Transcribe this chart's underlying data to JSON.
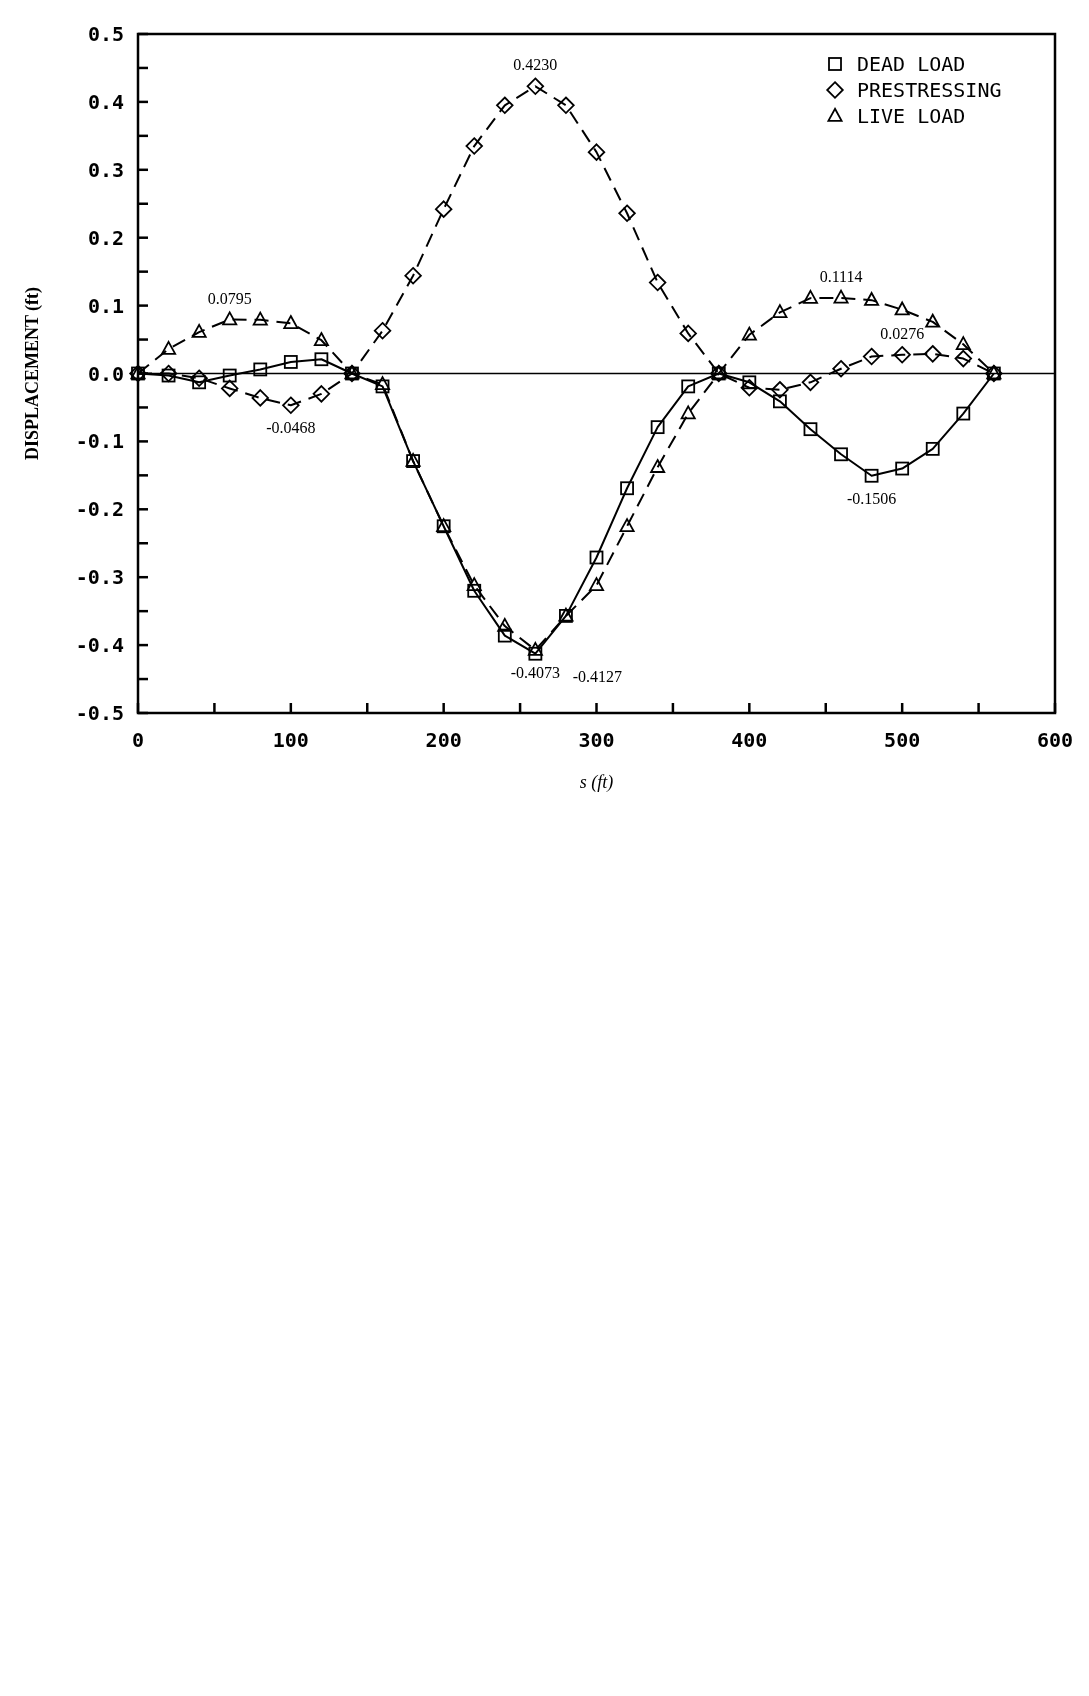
{
  "chart_data": {
    "type": "line",
    "xlabel": "s (ft)",
    "ylabel": "DISPLACEMENT (ft)",
    "x": [
      0,
      20,
      40,
      60,
      80,
      100,
      120,
      140,
      160,
      180,
      200,
      220,
      240,
      260,
      280,
      300,
      320,
      340,
      360,
      380,
      400,
      420,
      440,
      460,
      480,
      500,
      520,
      540,
      560
    ],
    "series": [
      {
        "name": "DEAD LOAD",
        "color": "#000000",
        "marker": "square",
        "line_style": "solid",
        "values": [
          0,
          -0.003,
          -0.013,
          -0.003,
          0.006,
          0.017,
          0.021,
          0,
          -0.019,
          -0.129,
          -0.225,
          -0.32,
          -0.386,
          -0.4127,
          -0.357,
          -0.271,
          -0.169,
          -0.079,
          -0.019,
          0,
          -0.013,
          -0.041,
          -0.082,
          -0.119,
          -0.1506,
          -0.14,
          -0.111,
          -0.059,
          0
        ]
      },
      {
        "name": "PRESTRESSING",
        "color": "#000000",
        "marker": "diamond",
        "line_style": "dashed",
        "values": [
          0,
          0,
          -0.007,
          -0.022,
          -0.036,
          -0.0468,
          -0.03,
          0,
          0.063,
          0.144,
          0.242,
          0.335,
          0.395,
          0.423,
          0.395,
          0.326,
          0.236,
          0.134,
          0.059,
          0,
          -0.021,
          -0.024,
          -0.013,
          0.007,
          0.025,
          0.0276,
          0.029,
          0.022,
          0
        ]
      },
      {
        "name": "LIVE LOAD",
        "color": "#000000",
        "marker": "triangle",
        "line_style": "dashed",
        "values": [
          0,
          0.036,
          0.061,
          0.0795,
          0.079,
          0.074,
          0.049,
          0,
          -0.016,
          -0.129,
          -0.225,
          -0.312,
          -0.372,
          -0.4073,
          -0.357,
          -0.312,
          -0.225,
          -0.138,
          -0.059,
          0,
          0.057,
          0.09,
          0.111,
          0.1114,
          0.108,
          0.094,
          0.076,
          0.043,
          0
        ]
      }
    ],
    "xlim": [
      0,
      600
    ],
    "xticks": [
      0,
      {
        "value": 50,
        "label": null
      },
      100,
      {
        "value": 150,
        "label": null
      },
      200,
      {
        "value": 250,
        "label": null
      },
      300,
      {
        "value": 350,
        "label": null
      },
      400,
      {
        "value": 450,
        "label": null
      },
      500,
      {
        "value": 550,
        "label": null
      },
      600
    ],
    "ylim": [
      -0.5,
      0.5
    ],
    "yticks": [
      -0.5,
      {
        "value": -0.45,
        "label": null
      },
      -0.4,
      {
        "value": -0.35,
        "label": null
      },
      -0.3,
      {
        "value": -0.25,
        "label": null
      },
      -0.2,
      {
        "value": -0.15,
        "label": null
      },
      -0.1,
      {
        "value": -0.05,
        "label": null
      },
      {
        "value": 0,
        "label": "0.0"
      },
      {
        "value": 0.05,
        "label": null
      },
      0.1,
      {
        "value": 0.15,
        "label": null
      },
      0.2,
      {
        "value": 0.25,
        "label": null
      },
      0.3,
      {
        "value": 0.35,
        "label": null
      },
      0.4,
      {
        "value": 0.45,
        "label": null
      },
      0.5
    ],
    "ref_lines": [
      {
        "axis": "y",
        "value": 0,
        "color": "#000000"
      }
    ],
    "annotations": [
      {
        "text": "0.0795",
        "x": 60,
        "y": 0.0795
      },
      {
        "text": "-0.0468",
        "x": 100,
        "y": -0.0468
      },
      {
        "text": "0.4230",
        "x": 260,
        "y": 0.423
      },
      {
        "text": "-0.4073",
        "x": 260,
        "y": -0.4073
      },
      {
        "text": "-0.4127",
        "x": 260,
        "y": -0.4127
      },
      {
        "text": "0.1114",
        "x": 460,
        "y": 0.1114
      },
      {
        "text": "0.0276",
        "x": 500,
        "y": 0.0276
      },
      {
        "text": "-0.1506",
        "x": 480,
        "y": -0.1506
      }
    ],
    "legend": "top right",
    "grid": false
  }
}
